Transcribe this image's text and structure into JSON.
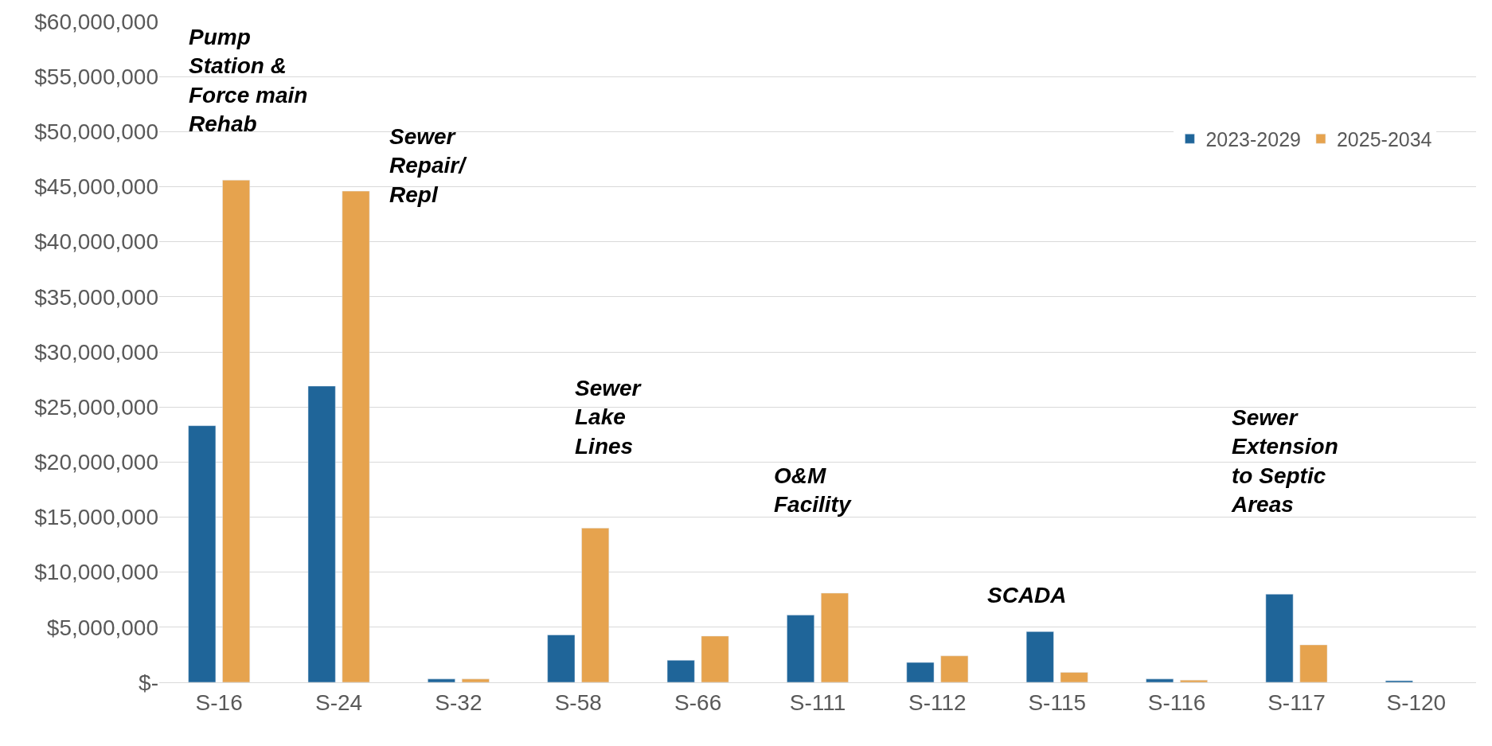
{
  "chart_data": {
    "type": "bar",
    "categories": [
      "S-16",
      "S-24",
      "S-32",
      "S-58",
      "S-66",
      "S-111",
      "S-112",
      "S-115",
      "S-116",
      "S-117",
      "S-120"
    ],
    "series": [
      {
        "name": "2023-2029",
        "color": "#1f6599",
        "values": [
          23300000,
          26900000,
          300000,
          4300000,
          2000000,
          6100000,
          1800000,
          4600000,
          300000,
          8000000,
          150000
        ]
      },
      {
        "name": "2025-2034",
        "color": "#e6a34e",
        "values": [
          45600000,
          44600000,
          300000,
          14000000,
          4200000,
          8100000,
          2400000,
          900000,
          200000,
          3400000,
          null
        ]
      }
    ],
    "ylim": [
      0,
      60000000
    ],
    "yticks": [
      {
        "value": 0,
        "label": "$-"
      },
      {
        "value": 5000000,
        "label": "$5,000,000"
      },
      {
        "value": 10000000,
        "label": "$10,000,000"
      },
      {
        "value": 15000000,
        "label": "$15,000,000"
      },
      {
        "value": 20000000,
        "label": "$20,000,000"
      },
      {
        "value": 25000000,
        "label": "$25,000,000"
      },
      {
        "value": 30000000,
        "label": "$30,000,000"
      },
      {
        "value": 35000000,
        "label": "$35,000,000"
      },
      {
        "value": 40000000,
        "label": "$40,000,000"
      },
      {
        "value": 45000000,
        "label": "$45,000,000"
      },
      {
        "value": 50000000,
        "label": "$50,000,000"
      },
      {
        "value": 55000000,
        "label": "$55,000,000"
      },
      {
        "value": 60000000,
        "label": "$60,000,000"
      }
    ],
    "annotations": [
      "Pump\nStation &\nForce main\nRehab",
      "Sewer\nRepair/\nRepl",
      "Sewer\nLake\nLines",
      "O&M\nFacility",
      "SCADA",
      "Sewer\nExtension\nto Septic\nAreas"
    ],
    "grid": "y",
    "legend": "top right"
  }
}
